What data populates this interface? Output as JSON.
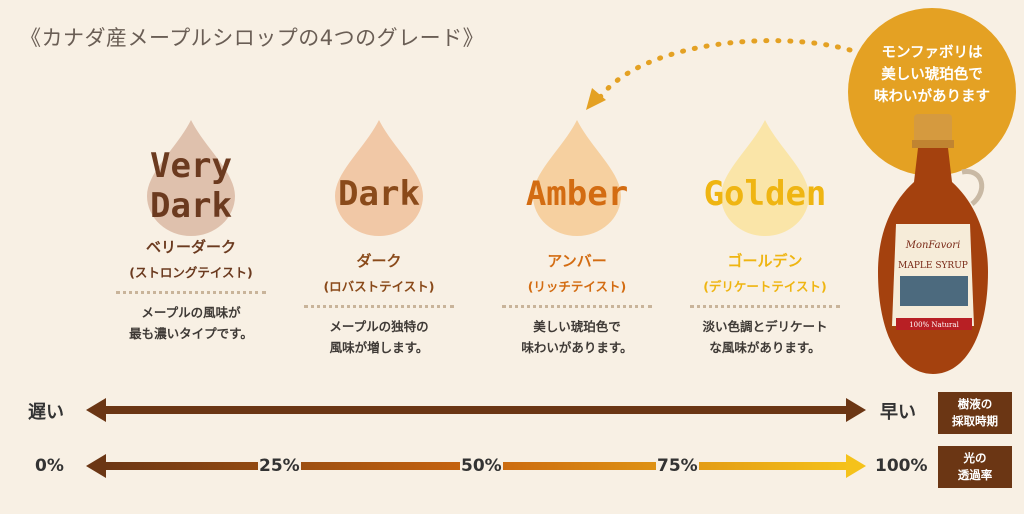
{
  "title": "《カナダ産メープルシロップの4つのグレード》",
  "grades": [
    {
      "name_line1": "Very",
      "name_line2": "Dark",
      "jp": "ベリーダーク",
      "sub": "(ストロングテイスト)",
      "desc1": "メープルの風味が",
      "desc2": "最も濃いタイプです。",
      "color": "#6b3a1f",
      "drop": "#dfc1ad"
    },
    {
      "name_line1": "Dark",
      "name_line2": "",
      "jp": "ダーク",
      "sub": "(ロバストテイスト)",
      "desc1": "メープルの独特の",
      "desc2": "風味が増します。",
      "color": "#8a4a1a",
      "drop": "#f1c8a6"
    },
    {
      "name_line1": "Amber",
      "name_line2": "",
      "jp": "アンバー",
      "sub": "(リッチテイスト)",
      "desc1": "美しい琥珀色で",
      "desc2": "味わいがあります。",
      "color": "#d36c12",
      "drop": "#f6d0a0"
    },
    {
      "name_line1": "Golden",
      "name_line2": "",
      "jp": "ゴールデン",
      "sub": "(デリケートテイスト)",
      "desc1": "淡い色調とデリケート",
      "desc2": "な風味があります。",
      "color": "#efb512",
      "drop": "#fae5a8"
    }
  ],
  "bubble": {
    "line1": "モンファボリは",
    "line2": "美しい琥珀色で",
    "line3": "味わいがあります"
  },
  "bottle": {
    "brand": "MonFavori",
    "label": "MAPLE SYRUP",
    "badge": "100% Natural"
  },
  "harvest": {
    "left": "遅い",
    "right": "早い",
    "box_line1": "樹液の",
    "box_line2": "採取時期"
  },
  "transmittance": {
    "ticks": [
      "0%",
      "25%",
      "50%",
      "75%",
      "100%"
    ],
    "box_line1": "光の",
    "box_line2": "透過率"
  }
}
